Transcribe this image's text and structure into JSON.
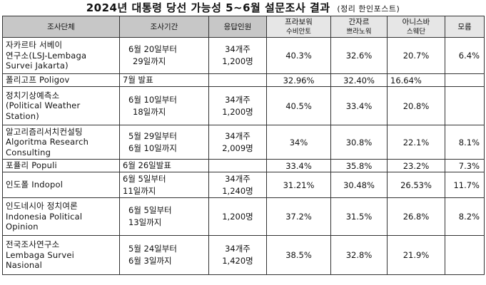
{
  "title": "2024년 대통령 당선 가능성 5~6월 설문조사 결과",
  "subtitle": "(정리 한인포스트)",
  "headers": {
    "org": "조사단체",
    "period": "조사기간",
    "respondents": "응답인원",
    "prabowo_top": "프라보워",
    "prabowo_bottom": "수비안토",
    "ganjar_top": "간자르",
    "ganjar_bottom": "쁘라노워",
    "anies_top": "아니스바",
    "anies_bottom": "스웨단",
    "unknown": "모름"
  },
  "rows": [
    {
      "org": [
        "자카르타 서베이",
        "연구소(LSJ-Lembaga",
        "Survei Jakarta)"
      ],
      "period": [
        "6월 20일부터",
        "29일까지"
      ],
      "resp": [
        "34개주",
        "1,200명"
      ],
      "prabowo": "40.3%",
      "ganjar": "32.6%",
      "anies": "20.7%",
      "unknown": "6.4%"
    },
    {
      "org": [
        "폴리고프 Poligov"
      ],
      "period": [
        "7월 발표"
      ],
      "resp": [],
      "prabowo": "32.96%",
      "ganjar": "32.40%",
      "anies": "16.64%",
      "unknown": ""
    },
    {
      "org": [
        "정치기상예측소",
        "(Political Weather",
        "Station)"
      ],
      "period": [
        "6월 10일부터",
        "18일까지"
      ],
      "resp": [
        "34개주",
        "1,200명"
      ],
      "prabowo": "40.5%",
      "ganjar": "33.4%",
      "anies": "20.8%",
      "unknown": ""
    },
    {
      "org": [
        "알고리즘리서치컨설팅",
        "Algoritma Research",
        "Consulting"
      ],
      "period": [
        "5월 29일부터",
        "6월 10일까지"
      ],
      "resp": [
        "34개주",
        "2,009명"
      ],
      "prabowo": "34%",
      "ganjar": "30.8%",
      "anies": "22.1%",
      "unknown": "8.1%"
    },
    {
      "org": [
        "포퓰리 Populi"
      ],
      "period": [
        "6월 26일발표"
      ],
      "resp": [],
      "prabowo": "33.4%",
      "ganjar": "35.8%",
      "anies": "23.2%",
      "unknown": "7.3%"
    },
    {
      "org": [
        "인도폴 Indopol"
      ],
      "period": [
        "6월 5일부터",
        "11일까지"
      ],
      "resp": [
        "34개주",
        "1,240명"
      ],
      "prabowo": "31.21%",
      "ganjar": "30.48%",
      "anies": "26.53%",
      "unknown": "11.7%"
    },
    {
      "org": [
        "인도네시아 정치여론",
        "Indonesia Political",
        "Opinion"
      ],
      "period": [
        "6월 5일부터",
        "13일까지"
      ],
      "resp": [
        "1,200명"
      ],
      "prabowo": "37.2%",
      "ganjar": "31.5%",
      "anies": "26.8%",
      "unknown": "8.2%"
    },
    {
      "org": [
        "전국조사연구소",
        "Lembaga Survei",
        "Nasional"
      ],
      "period": [
        "5월 24일부터",
        "6월 3일까지"
      ],
      "resp": [
        "34개주",
        "1,420명"
      ],
      "prabowo": "38.5%",
      "ganjar": "32.8%",
      "anies": "21.9%",
      "unknown": ""
    }
  ]
}
